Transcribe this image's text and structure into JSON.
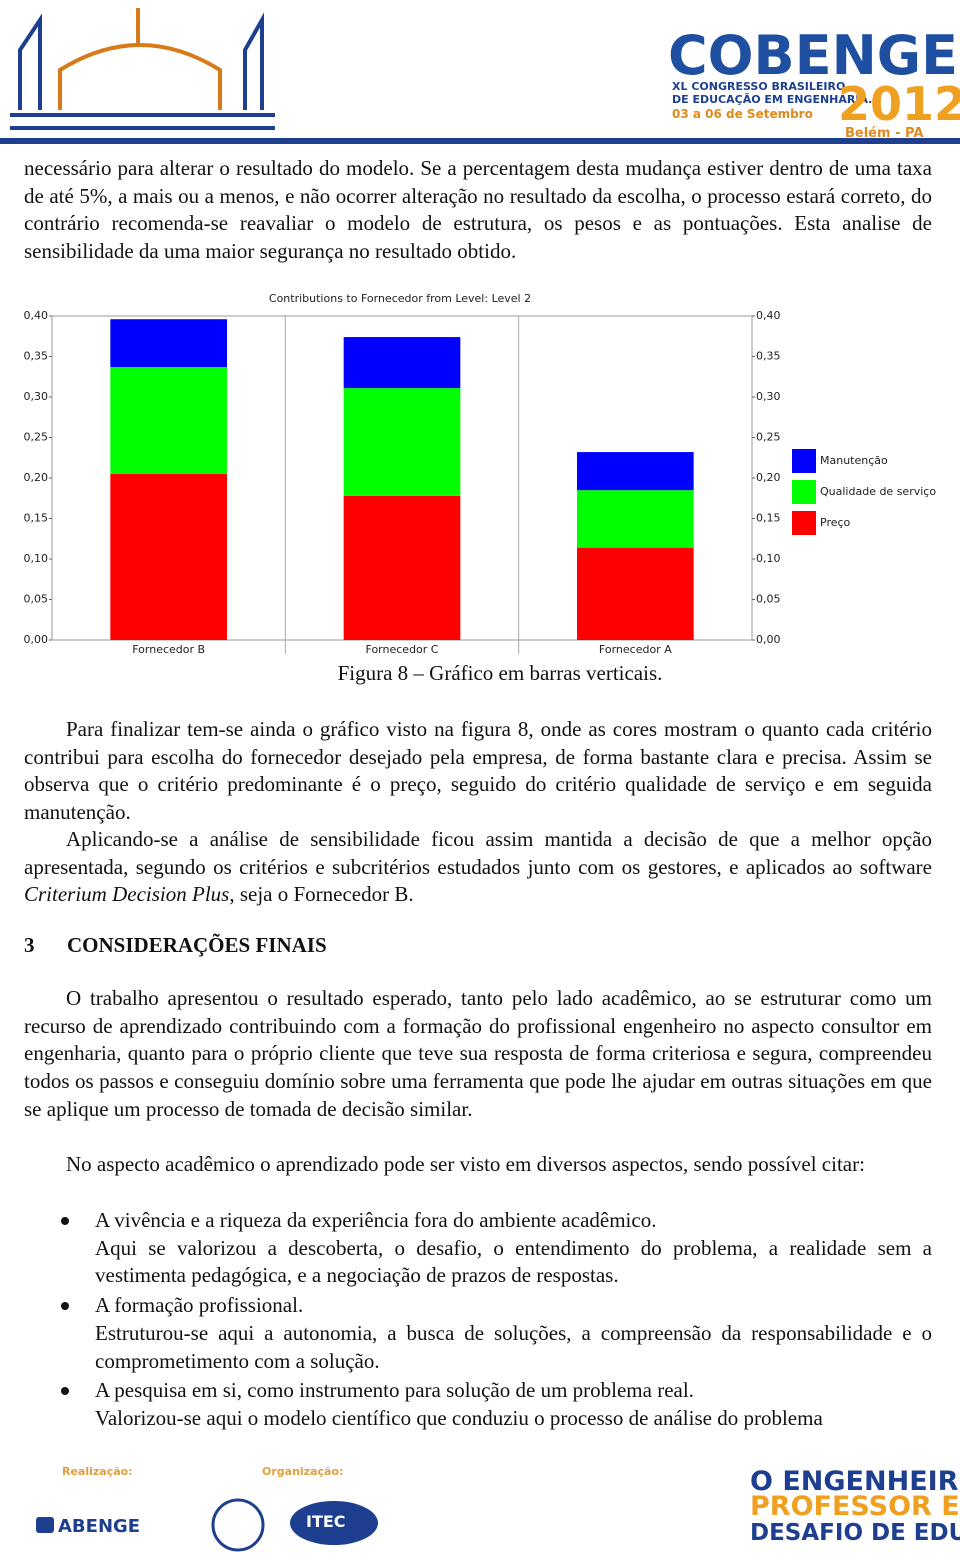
{
  "header": {
    "brand": "COBENGE",
    "congress_line1": "XL CONGRESSO BRASILEIRO",
    "congress_line2": "DE EDUCAÇÃO EM ENGENHARIA.",
    "dates": "03 a 06 de Setembro",
    "year": "2012",
    "place": "Belém - PA"
  },
  "intro_paragraph": "necessário para alterar o resultado do modelo. Se a percentagem desta mudança estiver dentro de uma taxa de até 5%, a mais ou a menos, e não ocorrer alteração no resultado da escolha, o processo estará correto, do contrário recomenda-se reavaliar o modelo de estrutura, os pesos e as pontuações. Esta analise de sensibilidade da uma maior segurança no resultado obtido.",
  "chart_data": {
    "type": "stacked_bar",
    "title": "Contributions to Fornecedor from Level: Level 2",
    "categories": [
      "Fornecedor B",
      "Fornecedor C",
      "Fornecedor A"
    ],
    "series": [
      {
        "name": "Preço",
        "color": "#ff0000",
        "values": [
          0.205,
          0.178,
          0.114
        ]
      },
      {
        "name": "Qualidade de serviço",
        "color": "#00ff00",
        "values": [
          0.132,
          0.133,
          0.071
        ]
      },
      {
        "name": "Manutenção",
        "color": "#0000ff",
        "values": [
          0.059,
          0.063,
          0.047
        ]
      }
    ],
    "ylim": [
      0,
      0.4
    ],
    "yticks": [
      {
        "value": 0,
        "label": "0,00"
      },
      {
        "value": 0.05,
        "label": "0,05"
      },
      {
        "value": 0.1,
        "label": "0,10"
      },
      {
        "value": 0.15,
        "label": "0,15"
      },
      {
        "value": 0.2,
        "label": "0,20"
      },
      {
        "value": 0.25,
        "label": "0,25"
      },
      {
        "value": 0.3,
        "label": "0,30"
      },
      {
        "value": 0.35,
        "label": "0,35"
      },
      {
        "value": 0.4,
        "label": "0,40"
      }
    ],
    "legend": "right"
  },
  "caption": "Figura 8 – Gráfico em barras verticais.",
  "paragraphs": [
    {
      "text": "Para finalizar tem-se ainda o gráfico visto na figura 8, onde as cores mostram o quanto cada critério contribui para escolha do fornecedor desejado pela empresa, de forma bastante clara e precisa. Assim se observa que o critério predominante é o preço, seguido do critério qualidade de serviço e em seguida manutenção."
    },
    {
      "before": "Aplicando-se a análise de sensibilidade ficou assim mantida a decisão de que a melhor opção apresentada, segundo os critérios e subcritérios estudados junto com os gestores, e aplicados ao software ",
      "emphasis": "Criterium Decision Plus",
      "after": ", seja o Fornecedor B."
    }
  ],
  "section": {
    "number": "3",
    "title": "CONSIDERAÇÕES FINAIS"
  },
  "section_paragraphs": [
    "O trabalho apresentou o resultado esperado, tanto pelo lado acadêmico, ao se estruturar como um recurso de aprendizado contribuindo com a formação do profissional engenheiro no aspecto consultor em engenharia, quanto para o próprio cliente que teve sua resposta de forma criteriosa e segura, compreendeu todos os passos e conseguiu domínio sobre uma ferramenta que pode lhe ajudar em outras situações em que se aplique um processo de tomada de decisão similar.",
    "No aspecto acadêmico o aprendizado pode ser visto em diversos aspectos, sendo possível citar:"
  ],
  "bullets": [
    {
      "item": "A vivência e a riqueza da experiência fora do ambiente acadêmico.",
      "detail": "Aqui se valorizou a descoberta, o desafio, o entendimento do problema, a realidade sem a vestimenta pedagógica, e a negociação de prazos de respostas."
    },
    {
      "item": "A formação profissional.",
      "detail": "Estruturou-se aqui a autonomia, a busca de soluções, a compreensão da responsabilidade e o comprometimento com a solução."
    },
    {
      "item": "A pesquisa em si, como instrumento para solução de um problema real.",
      "detail": "Valorizou-se aqui o modelo científico que conduziu o processo de análise do problema"
    }
  ],
  "footer": {
    "realizacao": "Realização:",
    "organizacao": "Organização:",
    "abenge": "ABENGE",
    "itec": "ITEC",
    "slogan_line1": "O ENGENHEIRO",
    "slogan_line2": "PROFESSOR E O",
    "slogan_line3": "DESAFIO DE EDUCAR"
  }
}
